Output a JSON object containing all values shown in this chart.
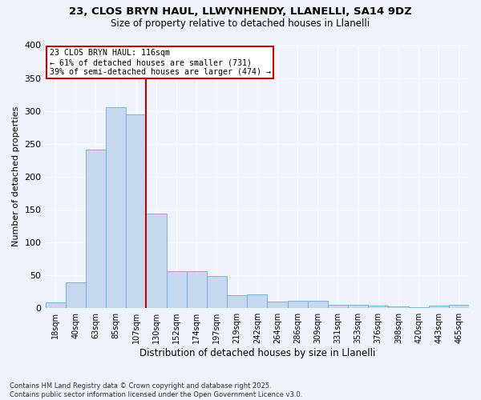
{
  "title_line1": "23, CLOS BRYN HAUL, LLWYNHENDY, LLANELLI, SA14 9DZ",
  "title_line2": "Size of property relative to detached houses in Llanelli",
  "xlabel": "Distribution of detached houses by size in Llanelli",
  "ylabel": "Number of detached properties",
  "footnote": "Contains HM Land Registry data © Crown copyright and database right 2025.\nContains public sector information licensed under the Open Government Licence v3.0.",
  "bar_labels": [
    "18sqm",
    "40sqm",
    "63sqm",
    "85sqm",
    "107sqm",
    "130sqm",
    "152sqm",
    "174sqm",
    "197sqm",
    "219sqm",
    "242sqm",
    "264sqm",
    "286sqm",
    "309sqm",
    "331sqm",
    "353sqm",
    "376sqm",
    "398sqm",
    "420sqm",
    "443sqm",
    "465sqm"
  ],
  "bar_values": [
    8,
    39,
    241,
    305,
    295,
    144,
    56,
    56,
    48,
    19,
    20,
    9,
    11,
    11,
    5,
    4,
    3,
    2,
    1,
    3,
    4
  ],
  "bar_color": "#c5d8f0",
  "bar_edgecolor": "#6aaad4",
  "background_color": "#eef2fb",
  "grid_color": "#ffffff",
  "annotation_line1": "23 CLOS BRYN HAUL: 116sqm",
  "annotation_line2": "← 61% of detached houses are smaller (731)",
  "annotation_line3": "39% of semi-detached houses are larger (474) →",
  "annotation_box_facecolor": "#ffffff",
  "annotation_box_edgecolor": "#cc0000",
  "vline_x": 4.5,
  "vline_color": "#cc0000",
  "ylim": [
    0,
    400
  ],
  "yticks": [
    0,
    50,
    100,
    150,
    200,
    250,
    300,
    350,
    400
  ]
}
